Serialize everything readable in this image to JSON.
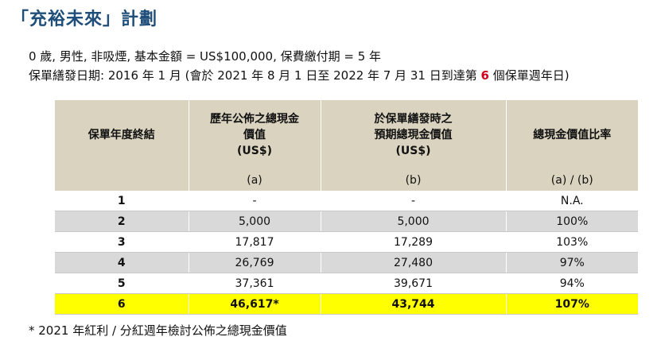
{
  "title": "「充裕未來」計劃",
  "assumption_line": "0 歲, 男性, 非吸煙, 基本金額 = US$100,000, 保費繳付期 = 5 年",
  "issue_line": {
    "prefix": "保單繕發日期: 2016 年 1 月 (會於 2021 年 8 月 1 日至 2022 年 7 月 31 日到達第 ",
    "highlight": "6",
    "suffix": " 個保單週年日)"
  },
  "table": {
    "headers": {
      "col1": "保單年度終結",
      "col2": [
        "歷年公佈之總現金",
        "價值",
        "(US$)"
      ],
      "col3": [
        "於保單繕發時之",
        "預期總現金價值",
        "(US$)"
      ],
      "col4": "總現金價值比率"
    },
    "subheaders": [
      "",
      "(a)",
      "(b)",
      "(a) / (b)"
    ],
    "rows": [
      {
        "year": "1",
        "a": "-",
        "b": "-",
        "ratio": "N.A."
      },
      {
        "year": "2",
        "a": "5,000",
        "b": "5,000",
        "ratio": "100%"
      },
      {
        "year": "3",
        "a": "17,817",
        "b": "17,289",
        "ratio": "103%"
      },
      {
        "year": "4",
        "a": "26,769",
        "b": "27,480",
        "ratio": "97%"
      },
      {
        "year": "5",
        "a": "37,361",
        "b": "39,671",
        "ratio": "94%"
      },
      {
        "year": "6",
        "a": "46,617*",
        "b": "43,744",
        "ratio": "107%"
      }
    ]
  },
  "footnote": "* 2021 年紅利 / 分紅週年檢討公佈之總現金價值",
  "colors": {
    "title": "#1f4e7a",
    "header_bg": "#d9d3bf",
    "grey_row": "#d9d9d9",
    "highlight_row": "#ffff00",
    "highlight_text": "#d0021b"
  }
}
